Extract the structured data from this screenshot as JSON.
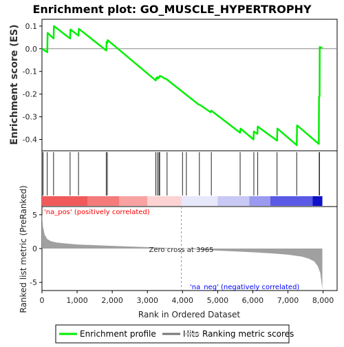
{
  "chart_data": {
    "type": "line",
    "title": "Enrichment plot: GO_MUSCLE_HYPERTROPHY",
    "es_panel": {
      "ylabel": "Enrichment score (ES)",
      "ylim": [
        -0.45,
        0.13
      ],
      "yticks": [
        "0.1",
        "0.0",
        "-0.1",
        "-0.2",
        "-0.3",
        "-0.4"
      ],
      "ytick_values": [
        0.1,
        0.0,
        -0.1,
        -0.2,
        -0.3,
        -0.4
      ],
      "series": [
        {
          "name": "Enrichment profile",
          "color": "#00ee00",
          "x": [
            0,
            150,
            160,
            330,
            340,
            800,
            810,
            1040,
            1050,
            1830,
            1840,
            1860,
            1870,
            3240,
            3250,
            3290,
            3300,
            3340,
            3350,
            3400,
            3500,
            3540,
            3560,
            4450,
            4520,
            4800,
            4820,
            5640,
            5650,
            6020,
            6030,
            6130,
            6140,
            6690,
            6700,
            7250,
            7260,
            7880,
            7885,
            7900,
            7905,
            7980
          ],
          "y": [
            0.0,
            -0.015,
            0.07,
            0.045,
            0.1,
            0.045,
            0.085,
            0.058,
            0.088,
            -0.008,
            0.03,
            0.025,
            0.038,
            -0.14,
            -0.13,
            -0.125,
            -0.132,
            -0.125,
            -0.12,
            -0.122,
            -0.132,
            -0.133,
            -0.136,
            -0.245,
            -0.25,
            -0.28,
            -0.273,
            -0.37,
            -0.352,
            -0.4,
            -0.365,
            -0.375,
            -0.343,
            -0.405,
            -0.352,
            -0.425,
            -0.338,
            -0.42,
            -0.212,
            -0.21,
            0.008,
            0.003
          ]
        }
      ]
    },
    "hits": [
      30,
      150,
      330,
      800,
      1040,
      1830,
      1860,
      3240,
      3290,
      3330,
      3350,
      3560,
      4000,
      4110,
      4480,
      4820,
      5640,
      6030,
      6140,
      6690,
      7250,
      7890,
      7900
    ],
    "rank_bar": {
      "segments": [
        {
          "to": 1300,
          "color": "#f05a5a"
        },
        {
          "to": 2200,
          "color": "#f57a7a"
        },
        {
          "to": 3000,
          "color": "#f8a2a2"
        },
        {
          "to": 3965,
          "color": "#fcd2d2"
        },
        {
          "to": 5000,
          "color": "#e8e8fc"
        },
        {
          "to": 5900,
          "color": "#c8c8f5"
        },
        {
          "to": 6500,
          "color": "#9a9af0"
        },
        {
          "to": 7700,
          "color": "#5a5ae6"
        },
        {
          "to": 7980,
          "color": "#1010c8"
        }
      ]
    },
    "ranked_panel": {
      "ylabel": "Ranked list metric (PreRanked)",
      "ylim": [
        -6.2,
        6.2
      ],
      "yticks": [
        "5",
        "0",
        "-5"
      ],
      "ytick_values": [
        5,
        0,
        -5
      ],
      "xlabel": "Rank in Ordered Dataset",
      "xlim": [
        0,
        8400
      ],
      "xticks": [
        "0",
        "1,000",
        "2,000",
        "3,000",
        "4,000",
        "5,000",
        "6,000",
        "7,000",
        "8,000"
      ],
      "xtick_values": [
        0,
        1000,
        2000,
        3000,
        4000,
        5000,
        6000,
        7000,
        8000
      ],
      "zero_cross": 3965,
      "zero_cross_label": "Zero cross at 3965",
      "pos_label": "'na_pos' (positively correlated)",
      "neg_label": "'na_neg' (negatively correlated)",
      "pos_color": "#ff0000",
      "neg_color": "#0000ff",
      "fill_color": "#a0a0a0",
      "metric_x": [
        0,
        30,
        80,
        150,
        250,
        400,
        600,
        1000,
        2000,
        3000,
        3965,
        5000,
        6000,
        6500,
        7000,
        7400,
        7600,
        7750,
        7850,
        7920,
        7960,
        7980
      ],
      "metric_y": [
        5.2,
        3.2,
        2.0,
        1.4,
        1.1,
        0.9,
        0.78,
        0.6,
        0.4,
        0.2,
        0.0,
        -0.3,
        -0.55,
        -0.7,
        -0.9,
        -1.2,
        -1.5,
        -1.9,
        -2.6,
        -3.6,
        -5.2,
        -6.0
      ]
    },
    "legend": [
      {
        "label": "Enrichment profile",
        "color": "#00ee00"
      },
      {
        "label": "Hits",
        "color": "#777777"
      },
      {
        "label": "Ranking metric scores",
        "color": "#cccccc"
      }
    ]
  }
}
